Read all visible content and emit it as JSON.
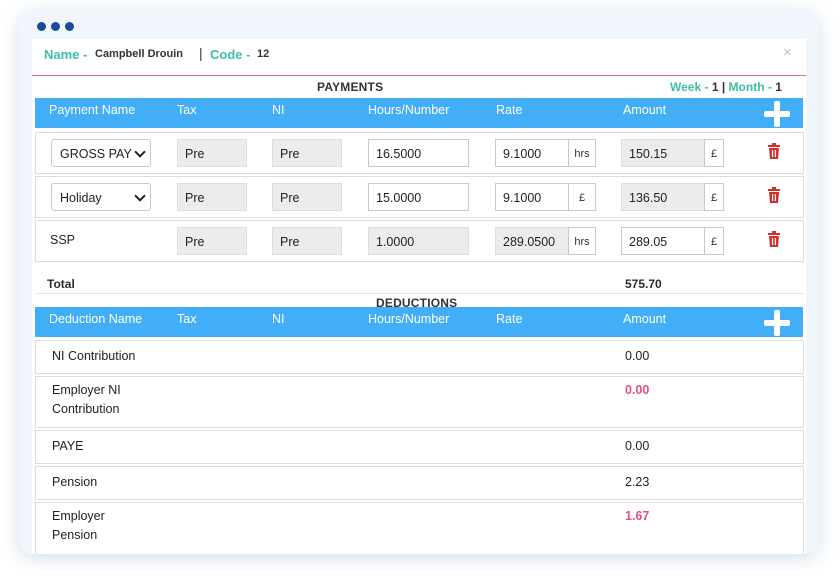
{
  "header": {
    "name_label": "Name -",
    "name_value": "Campbell Drouin",
    "separator": "|",
    "code_label": "Code -",
    "code_value": "12",
    "close_icon": "×"
  },
  "payments": {
    "title": "PAYMENTS",
    "week_label": "Week -",
    "week_value": "1",
    "period_separator": "|",
    "month_label": "Month -",
    "month_value": "1",
    "columns": [
      "Payment Name",
      "Tax",
      "NI",
      "Hours/Number",
      "Rate",
      "Amount"
    ],
    "rows": [
      {
        "name": "GROSS PAY",
        "tax": "Pre",
        "ni": "Pre",
        "hours": "16.5000",
        "rate": "9.1000",
        "rate_unit": "hrs",
        "amount": "150.15",
        "amount_unit": "£"
      },
      {
        "name": "Holiday",
        "tax": "Pre",
        "ni": "Pre",
        "hours": "15.0000",
        "rate": "9.1000",
        "rate_unit": "£",
        "amount": "136.50",
        "amount_unit": "£"
      },
      {
        "name": "SSP",
        "tax": "Pre",
        "ni": "Pre",
        "hours": "1.0000",
        "rate": "289.0500",
        "rate_unit": "hrs",
        "amount": "289.05",
        "amount_unit": "£"
      }
    ],
    "total_label": "Total",
    "total_value": "575.70"
  },
  "deductions": {
    "title": "DEDUCTIONS",
    "columns": [
      "Deduction Name",
      "Tax",
      "NI",
      "Hours/Number",
      "Rate",
      "Amount"
    ],
    "rows": [
      {
        "name": "NI Contribution",
        "amount": "0.00"
      },
      {
        "name_line1": "Employer NI",
        "name_line2": "Contribution",
        "amount": "0.00"
      },
      {
        "name": "PAYE",
        "amount": "0.00"
      },
      {
        "name": "Pension",
        "amount": "2.23"
      },
      {
        "name_line1": "Employer",
        "name_line2": "Pension",
        "amount": "1.67"
      }
    ]
  },
  "colors": {
    "accent_teal": "#3dbfa4",
    "header_bar_blue": "#43aef8",
    "employer_pink": "#e0508a",
    "delete_red": "#d0312d",
    "window_dots": "#1a4c97"
  },
  "icons": {
    "add": "plus-icon",
    "delete": "trash-icon",
    "close": "close-icon",
    "dropdown": "chevron-down-icon"
  }
}
